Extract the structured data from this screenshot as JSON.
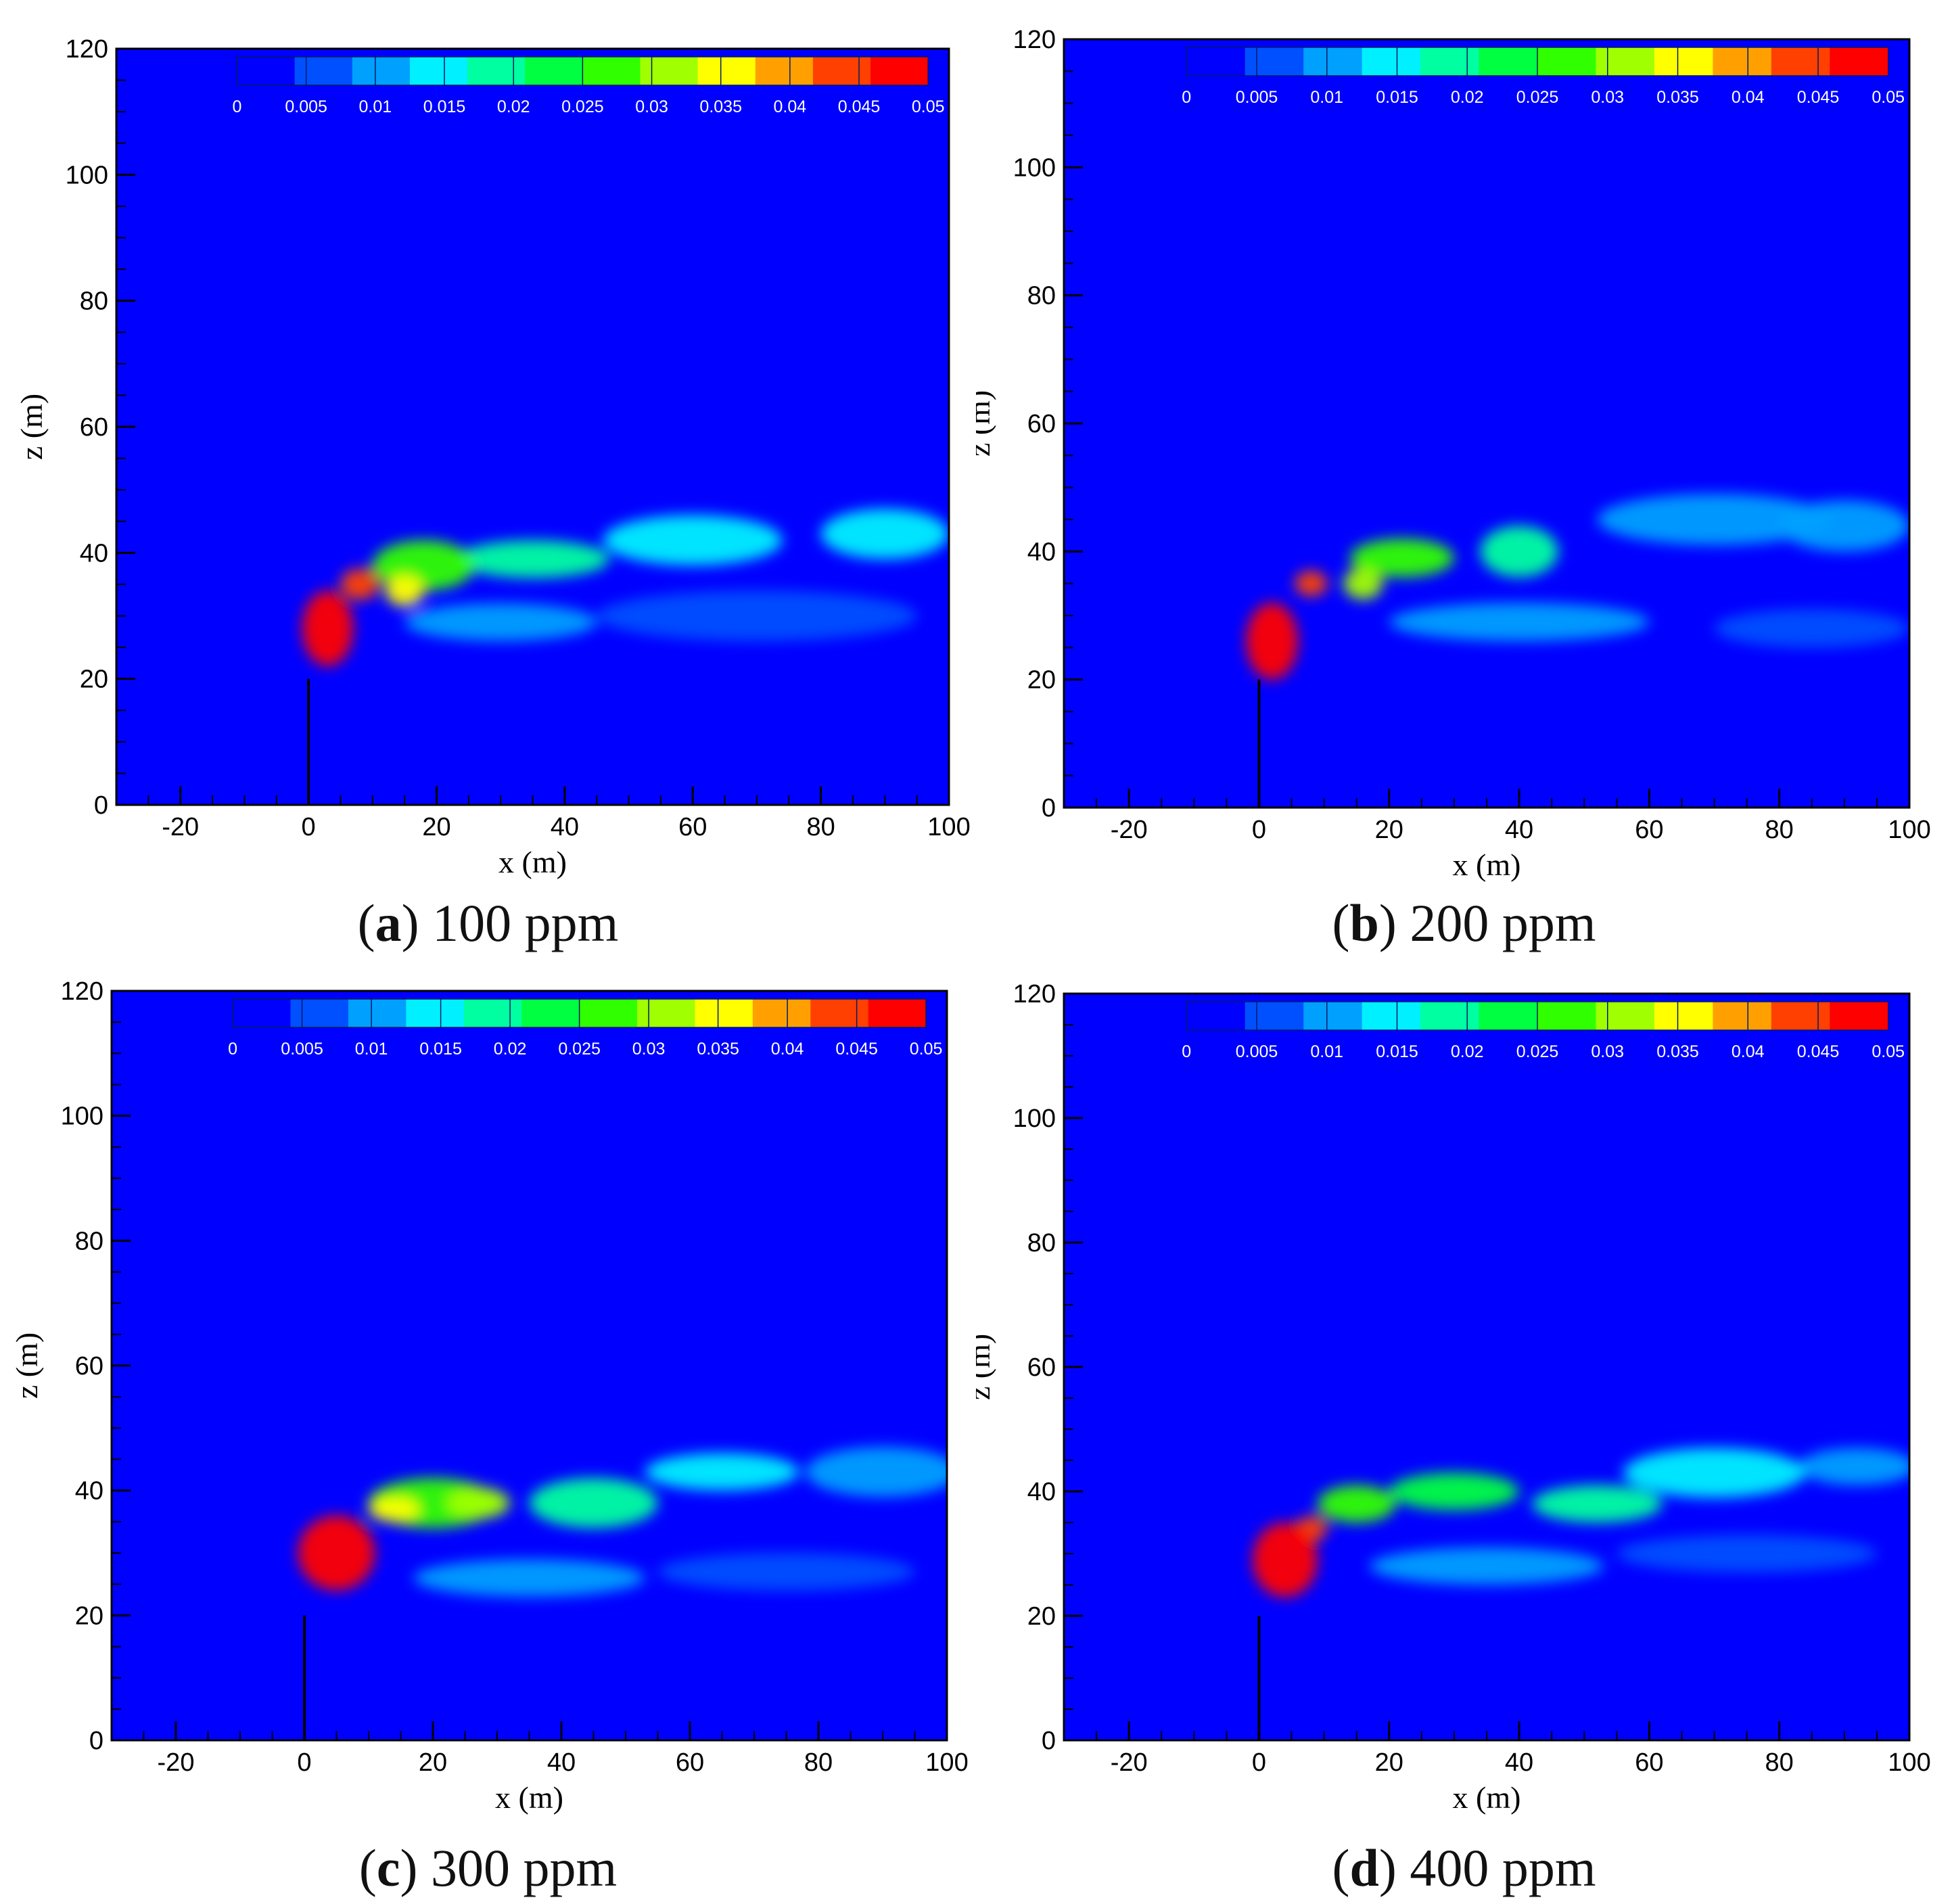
{
  "panels": [
    {
      "id": "a",
      "letter": "a",
      "label": "100 ppm"
    },
    {
      "id": "b",
      "letter": "b",
      "label": "200 ppm"
    },
    {
      "id": "c",
      "letter": "c",
      "label": "300 ppm"
    },
    {
      "id": "d",
      "letter": "d",
      "label": "400 ppm"
    }
  ],
  "colorbar": {
    "ticks": [
      "0",
      "0.005",
      "0.01",
      "0.015",
      "0.02",
      "0.025",
      "0.03",
      "0.035",
      "0.04",
      "0.045",
      "0.05"
    ],
    "colors": [
      "#0000ff",
      "#0050ff",
      "#00a0ff",
      "#00f0ff",
      "#00ffa0",
      "#00ff40",
      "#30ff00",
      "#a0ff00",
      "#ffff00",
      "#ffa000",
      "#ff4000",
      "#ff0000"
    ]
  },
  "chart_data": {
    "type": "heatmap",
    "variable": "concentration",
    "range": [
      0,
      0.05
    ],
    "xlabel": "x (m)",
    "ylabel": "z (m)",
    "xlim": [
      -30,
      100
    ],
    "ylim": [
      0,
      120
    ],
    "xticks": [
      "-20",
      "0",
      "20",
      "40",
      "60",
      "80",
      "100"
    ],
    "yticks": [
      "0",
      "20",
      "40",
      "60",
      "80",
      "100",
      "120"
    ],
    "stack": {
      "x": 0,
      "height": 20
    },
    "background_color": "#0000ff",
    "plumes": {
      "a": [
        {
          "x": 3,
          "z": 28,
          "rx": 4,
          "rz": 6,
          "c": 0.05
        },
        {
          "x": 8,
          "z": 35,
          "rx": 3,
          "rz": 2.5,
          "c": 0.045
        },
        {
          "x": 15,
          "z": 34,
          "rx": 3,
          "rz": 2.5,
          "c": 0.035
        },
        {
          "x": 18,
          "z": 38,
          "rx": 8,
          "rz": 4,
          "c": 0.025
        },
        {
          "x": 35,
          "z": 39,
          "rx": 12,
          "rz": 3,
          "c": 0.018
        },
        {
          "x": 60,
          "z": 42,
          "rx": 14,
          "rz": 4,
          "c": 0.013
        },
        {
          "x": 90,
          "z": 43,
          "rx": 10,
          "rz": 4,
          "c": 0.012
        },
        {
          "x": 30,
          "z": 29,
          "rx": 15,
          "rz": 3,
          "c": 0.008
        },
        {
          "x": 70,
          "z": 30,
          "rx": 25,
          "rz": 4,
          "c": 0.006
        }
      ],
      "b": [
        {
          "x": 2,
          "z": 26,
          "rx": 4,
          "rz": 6,
          "c": 0.05
        },
        {
          "x": 8,
          "z": 35,
          "rx": 2.5,
          "rz": 2,
          "c": 0.045
        },
        {
          "x": 16,
          "z": 35,
          "rx": 3,
          "rz": 2.5,
          "c": 0.03
        },
        {
          "x": 22,
          "z": 39,
          "rx": 8,
          "rz": 3,
          "c": 0.025
        },
        {
          "x": 40,
          "z": 40,
          "rx": 6,
          "rz": 4,
          "c": 0.018
        },
        {
          "x": 70,
          "z": 45,
          "rx": 18,
          "rz": 4,
          "c": 0.011
        },
        {
          "x": 90,
          "z": 44,
          "rx": 10,
          "rz": 4,
          "c": 0.01
        },
        {
          "x": 40,
          "z": 29,
          "rx": 20,
          "rz": 3,
          "c": 0.007
        },
        {
          "x": 85,
          "z": 28,
          "rx": 15,
          "rz": 3,
          "c": 0.006
        }
      ],
      "c": [
        {
          "x": 5,
          "z": 30,
          "rx": 6,
          "rz": 6,
          "c": 0.05
        },
        {
          "x": 14,
          "z": 37,
          "rx": 4,
          "rz": 2,
          "c": 0.035
        },
        {
          "x": 27,
          "z": 38,
          "rx": 5,
          "rz": 2.5,
          "c": 0.03
        },
        {
          "x": 20,
          "z": 38,
          "rx": 10,
          "rz": 4,
          "c": 0.025
        },
        {
          "x": 45,
          "z": 38,
          "rx": 10,
          "rz": 4,
          "c": 0.016
        },
        {
          "x": 65,
          "z": 43,
          "rx": 12,
          "rz": 3,
          "c": 0.012
        },
        {
          "x": 90,
          "z": 43,
          "rx": 12,
          "rz": 4,
          "c": 0.011
        },
        {
          "x": 35,
          "z": 26,
          "rx": 18,
          "rz": 3,
          "c": 0.007
        },
        {
          "x": 75,
          "z": 27,
          "rx": 20,
          "rz": 3,
          "c": 0.006
        }
      ],
      "d": [
        {
          "x": 4,
          "z": 29,
          "rx": 5,
          "rz": 6,
          "c": 0.05
        },
        {
          "x": 8,
          "z": 34,
          "rx": 2.5,
          "rz": 2,
          "c": 0.045
        },
        {
          "x": 15,
          "z": 38,
          "rx": 6,
          "rz": 3,
          "c": 0.028
        },
        {
          "x": 30,
          "z": 40,
          "rx": 10,
          "rz": 3,
          "c": 0.022
        },
        {
          "x": 52,
          "z": 38,
          "rx": 10,
          "rz": 3,
          "c": 0.018
        },
        {
          "x": 70,
          "z": 43,
          "rx": 14,
          "rz": 4,
          "c": 0.012
        },
        {
          "x": 92,
          "z": 44,
          "rx": 9,
          "rz": 3,
          "c": 0.011
        },
        {
          "x": 35,
          "z": 28,
          "rx": 18,
          "rz": 3,
          "c": 0.007
        },
        {
          "x": 75,
          "z": 30,
          "rx": 20,
          "rz": 3,
          "c": 0.006
        }
      ]
    }
  }
}
